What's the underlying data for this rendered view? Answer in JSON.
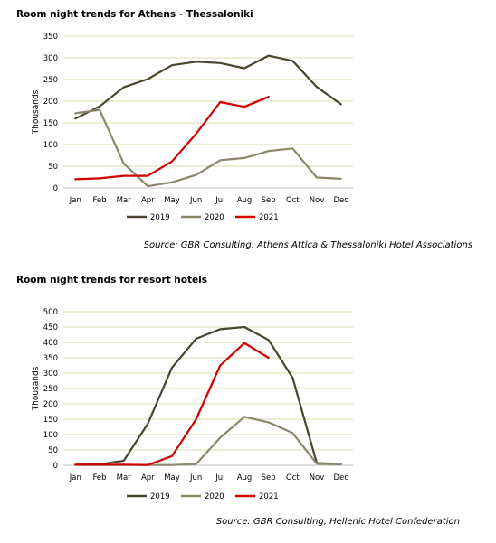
{
  "chart_data": [
    {
      "type": "line",
      "title": "Room night trends for Athens - Thessaloniki",
      "ylabel": "Thousands",
      "xlabel": "",
      "categories": [
        "Jan",
        "Feb",
        "Mar",
        "Apr",
        "May",
        "Jun",
        "Jul",
        "Aug",
        "Sep",
        "Oct",
        "Nov",
        "Dec"
      ],
      "ylim": [
        0,
        350
      ],
      "yticks": [
        0,
        50,
        100,
        150,
        200,
        250,
        300,
        350
      ],
      "grid": true,
      "legend": "bottom-center",
      "series": [
        {
          "name": "2019",
          "color": "#4a4530",
          "values": [
            160,
            188,
            232,
            251,
            283,
            291,
            288,
            276,
            305,
            293,
            233,
            193
          ]
        },
        {
          "name": "2020",
          "color": "#8c876a",
          "values": [
            172,
            180,
            56,
            4,
            13,
            30,
            64,
            69,
            85,
            91,
            24,
            21
          ]
        },
        {
          "name": "2021",
          "color": "#d00000",
          "values": [
            20,
            22,
            28,
            28,
            61,
            125,
            198,
            187,
            210,
            null,
            null,
            null
          ]
        }
      ],
      "source": "Source: GBR Consulting, Athens Attica & Thessaloniki Hotel Associations"
    },
    {
      "type": "line",
      "title": "Room night trends for resort hotels",
      "ylabel": "Thousands",
      "xlabel": "",
      "categories": [
        "Jan",
        "Feb",
        "Mar",
        "Apr",
        "May",
        "Jun",
        "Jul",
        "Aug",
        "Sep",
        "Oct",
        "Nov",
        "Dec"
      ],
      "ylim": [
        0,
        500
      ],
      "yticks": [
        0,
        50,
        100,
        150,
        200,
        250,
        300,
        350,
        400,
        450,
        500
      ],
      "grid": true,
      "legend": "bottom-center",
      "series": [
        {
          "name": "2019",
          "color": "#4a4530",
          "values": [
            2,
            3,
            15,
            135,
            318,
            412,
            443,
            450,
            408,
            285,
            7,
            5
          ]
        },
        {
          "name": "2020",
          "color": "#8c876a",
          "values": [
            1,
            1,
            1,
            1,
            1,
            4,
            90,
            158,
            140,
            105,
            5,
            3
          ]
        },
        {
          "name": "2021",
          "color": "#d00000",
          "values": [
            2,
            2,
            2,
            1,
            30,
            150,
            325,
            398,
            350,
            null,
            null,
            null
          ]
        }
      ],
      "source": "Source: GBR Consulting, Hellenic Hotel Confederation"
    }
  ]
}
